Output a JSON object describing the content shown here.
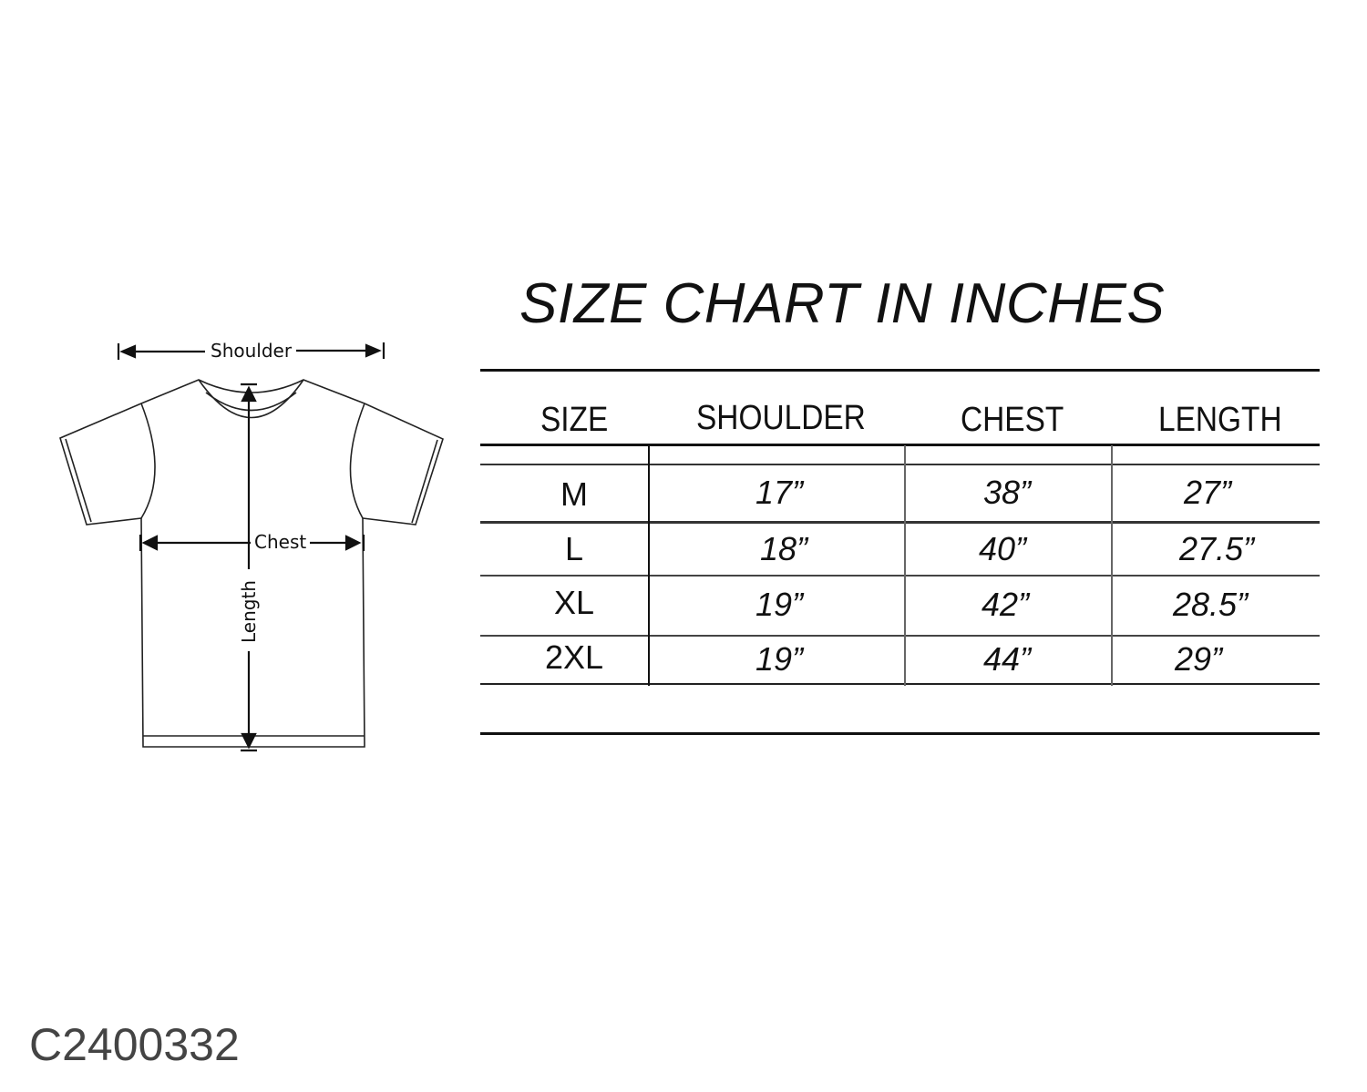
{
  "title": "SIZE CHART IN INCHES",
  "diagram": {
    "shoulder_label": "Shoulder",
    "chest_label": "Chest",
    "length_label": "Length"
  },
  "table": {
    "headers": [
      "SIZE",
      "SHOULDER",
      "CHEST",
      "LENGTH"
    ],
    "rows": [
      {
        "size": "M",
        "shoulder": "17”",
        "chest": "38”",
        "length": "27”"
      },
      {
        "size": "L",
        "shoulder": "18”",
        "chest": "40”",
        "length": "27.5”"
      },
      {
        "size": "XL",
        "shoulder": "19”",
        "chest": "42”",
        "length": "28.5”"
      },
      {
        "size": "2XL",
        "shoulder": "19”",
        "chest": "44”",
        "length": "29”"
      }
    ]
  },
  "product_code": "C2400332"
}
